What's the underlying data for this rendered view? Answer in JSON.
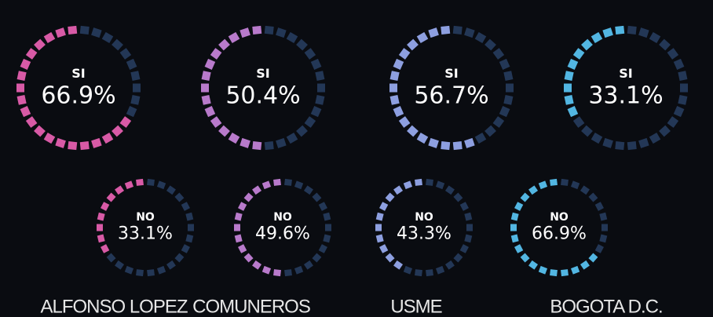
{
  "chart_data": [
    {
      "type": "gauge",
      "title": "ALFONSO LOPEZ",
      "color": "#d85aa6",
      "categories": [
        "SI",
        "NO"
      ],
      "values": [
        66.9,
        33.1
      ],
      "value_labels": [
        "66.9%",
        "33.1%"
      ]
    },
    {
      "type": "gauge",
      "title": "COMUNEROS",
      "color": "#b87acb",
      "categories": [
        "SI",
        "NO"
      ],
      "values": [
        50.4,
        49.6
      ],
      "value_labels": [
        "50.4%",
        "49.6%"
      ]
    },
    {
      "type": "gauge",
      "title": "USME",
      "color": "#8d9fe0",
      "categories": [
        "SI",
        "NO"
      ],
      "values": [
        56.7,
        43.3
      ],
      "value_labels": [
        "56.7%",
        "43.3%"
      ]
    },
    {
      "type": "gauge",
      "title": "BOGOTA D.C.",
      "color": "#52b6e2",
      "categories": [
        "SI",
        "NO"
      ],
      "values": [
        33.1,
        66.9
      ],
      "value_labels": [
        "33.1%",
        "66.9%"
      ]
    }
  ]
}
